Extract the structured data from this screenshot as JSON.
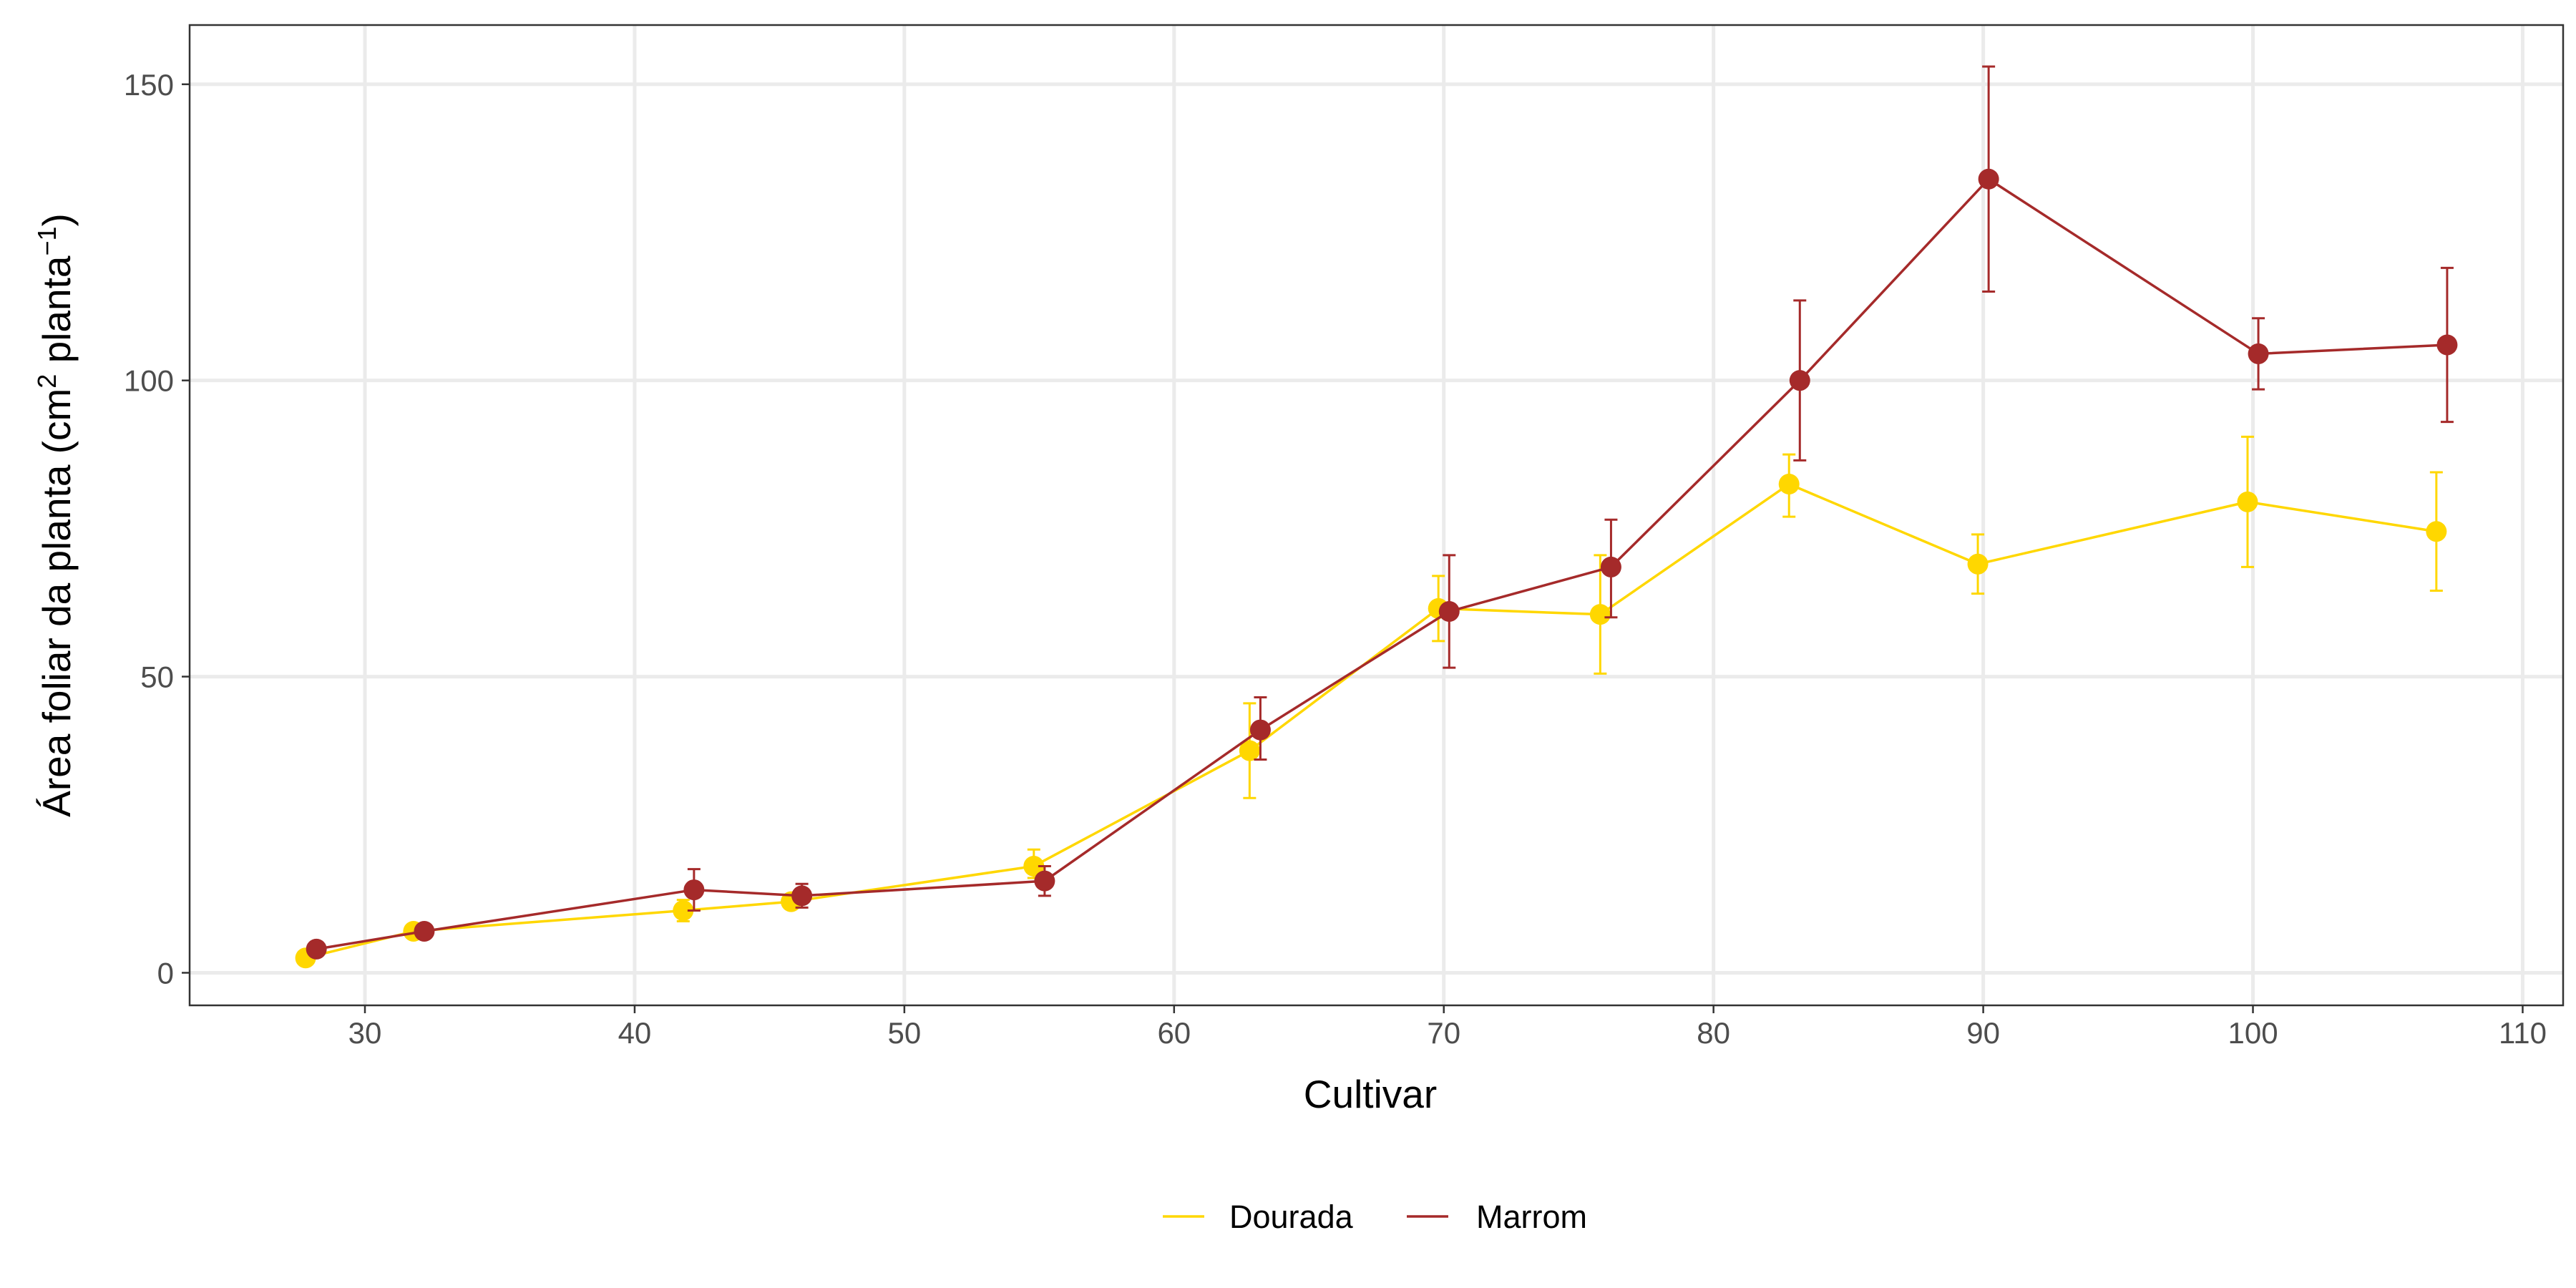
{
  "chart_data": {
    "type": "line",
    "xlabel": "Cultivar",
    "ylabel_main": "Área foliar da planta (cm",
    "ylabel_sup1": "2",
    "ylabel_mid": " planta",
    "ylabel_sup2": "−1",
    "ylabel_end": ")",
    "xlim": [
      23.5,
      111.5
    ],
    "ylim": [
      -5.5,
      160
    ],
    "x_ticks": [
      30,
      40,
      50,
      60,
      70,
      80,
      90,
      100,
      110
    ],
    "y_ticks": [
      0,
      50,
      100,
      150
    ],
    "grid": true,
    "legend_position": "bottom",
    "series": [
      {
        "name": "Dourada",
        "color": "#FFD700",
        "points": [
          {
            "x": 27.8,
            "y": 2.5,
            "lo": 2.5,
            "hi": 2.5
          },
          {
            "x": 31.8,
            "y": 7.0,
            "lo": 7.0,
            "hi": 7.0
          },
          {
            "x": 41.8,
            "y": 10.5,
            "lo": 8.7,
            "hi": 12.3
          },
          {
            "x": 45.8,
            "y": 12.0,
            "lo": 11.0,
            "hi": 13.0
          },
          {
            "x": 54.8,
            "y": 18.0,
            "lo": 16.0,
            "hi": 20.8
          },
          {
            "x": 62.8,
            "y": 37.5,
            "lo": 29.5,
            "hi": 45.5
          },
          {
            "x": 69.8,
            "y": 61.5,
            "lo": 56.0,
            "hi": 67.0
          },
          {
            "x": 75.8,
            "y": 60.5,
            "lo": 50.5,
            "hi": 70.5
          },
          {
            "x": 82.8,
            "y": 82.5,
            "lo": 77.0,
            "hi": 87.5
          },
          {
            "x": 89.8,
            "y": 69.0,
            "lo": 64.0,
            "hi": 74.0
          },
          {
            "x": 99.8,
            "y": 79.5,
            "lo": 68.5,
            "hi": 90.5
          },
          {
            "x": 106.8,
            "y": 74.5,
            "lo": 64.5,
            "hi": 84.5
          }
        ]
      },
      {
        "name": "Marrom",
        "color": "#A52A2A",
        "points": [
          {
            "x": 28.2,
            "y": 4.0,
            "lo": 4.0,
            "hi": 4.0
          },
          {
            "x": 32.2,
            "y": 7.0,
            "lo": 7.0,
            "hi": 7.0
          },
          {
            "x": 42.2,
            "y": 14.0,
            "lo": 10.5,
            "hi": 17.5
          },
          {
            "x": 46.2,
            "y": 13.0,
            "lo": 11.0,
            "hi": 15.0
          },
          {
            "x": 55.2,
            "y": 15.5,
            "lo": 13.0,
            "hi": 18.0
          },
          {
            "x": 63.2,
            "y": 41.0,
            "lo": 36.0,
            "hi": 46.5
          },
          {
            "x": 70.2,
            "y": 61.0,
            "lo": 51.5,
            "hi": 70.5
          },
          {
            "x": 76.2,
            "y": 68.5,
            "lo": 60.0,
            "hi": 76.5
          },
          {
            "x": 83.2,
            "y": 100.0,
            "lo": 86.5,
            "hi": 113.5
          },
          {
            "x": 90.2,
            "y": 134.0,
            "lo": 115.0,
            "hi": 153.0
          },
          {
            "x": 100.2,
            "y": 104.5,
            "lo": 98.5,
            "hi": 110.5
          },
          {
            "x": 107.2,
            "y": 106.0,
            "lo": 93.0,
            "hi": 119.0
          }
        ]
      }
    ]
  }
}
